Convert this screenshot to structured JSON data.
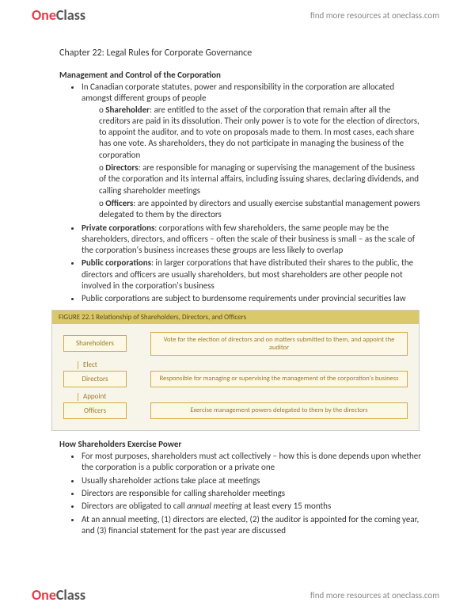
{
  "brand": {
    "one": "One",
    "class": "Class",
    "tagline": "find more resources at oneclass.com"
  },
  "chapter": "Chapter 22: Legal Rules for Corporate Governance",
  "section1": {
    "title": "Management and Control of the Corporation",
    "b1": "In Canadian corporate statutes, power and responsibility in the corporation are allocated amongst different groups of people",
    "s1_term": "Shareholder",
    "s1_text": ": are entitled to the asset of the corporation that remain after all the creditors are paid in its dissolution. Their only power is to vote for the election of directors, to appoint the auditor, and to vote on proposals made to them. In most cases, each share has one vote. As shareholders, they do not participate in managing the business of the corporation",
    "s2_term": "Directors",
    "s2_text": ": are responsible for managing or supervising the management of the business of the corporation and its internal affairs, including issuing shares, declaring dividends, and calling shareholder meetings",
    "s3_term": "Officers",
    "s3_text": ": are appointed by directors and usually exercise substantial management powers delegated to them by the directors",
    "b2_term": "Private corporations",
    "b2_text": ":  corporations with few shareholders, the same people may be the shareholders, directors, and officers – often the scale of their business is small – as the scale of the corporation's business increases these groups are less likely to overlap",
    "b3_term": "Public corporations",
    "b3_text": ": in larger corporations that have distributed their shares to the public, the directors and officers are usually shareholders, but most shareholders are other people not involved in the corporation's business",
    "b4": "Public corporations are subject to burdensome requirements under provincial securities law"
  },
  "figure": {
    "title": "FIGURE 22.1  Relationship of Shareholders, Directors, and Officers",
    "shareholders": "Shareholders",
    "shareholders_desc": "Vote for the election of directors and on matters submitted to them, and appoint the auditor",
    "elect": "Elect",
    "directors": "Directors",
    "directors_desc": "Responsible for managing or supervising the management of the corporation's business",
    "appoint": "Appoint",
    "officers": "Officers",
    "officers_desc": "Exercise management powers delegated to them by the directors"
  },
  "section2": {
    "title": "How Shareholders Exercise Power",
    "b1": "For most purposes, shareholders must act collectively – how this is done depends upon whether the corporation is a public corporation or a private one",
    "b2": "Usually shareholder actions take place at meetings",
    "b3": "Directors are responsible for calling shareholder meetings",
    "b4_pre": "Directors are obligated to call ",
    "b4_em": "annual meeting",
    "b4_post": " at least every 15 months",
    "b5": "At an annual meeting, (1) directors are elected, (2) the auditor is appointed for the coming year, and (3) financial statement for the past year are discussed"
  }
}
